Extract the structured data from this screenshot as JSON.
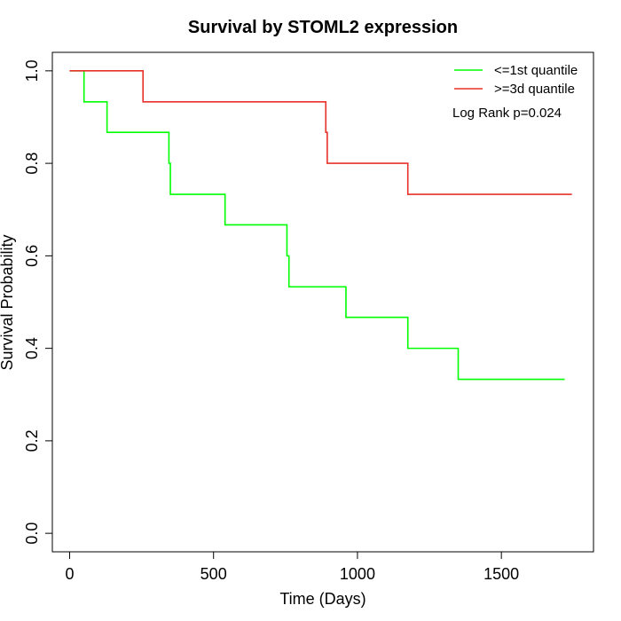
{
  "chart_data": {
    "type": "line",
    "step": "post",
    "title": "Survival by STOML2 expression",
    "xlabel": "Time (Days)",
    "ylabel": "Survival Probability",
    "xlim": [
      -60,
      1820
    ],
    "ylim": [
      -0.04,
      1.04
    ],
    "xticks": [
      0,
      500,
      1000,
      1500
    ],
    "yticks": [
      0.0,
      0.2,
      0.4,
      0.6,
      0.8,
      1.0
    ],
    "xtick_labels": [
      "0",
      "500",
      "1000",
      "1500"
    ],
    "ytick_labels": [
      "0.0",
      "0.2",
      "0.4",
      "0.6",
      "0.8",
      "1.0"
    ],
    "grid": false,
    "legend_position": "top-right",
    "annotation": "Log Rank p=0.024",
    "series": [
      {
        "name": "<=1st quantile",
        "color": "#00ff00",
        "x": [
          0,
          50,
          130,
          345,
          350,
          540,
          755,
          762,
          960,
          1175,
          1350,
          1720
        ],
        "y": [
          1.0,
          0.933,
          0.867,
          0.8,
          0.733,
          0.667,
          0.6,
          0.533,
          0.467,
          0.4,
          0.333,
          0.333
        ]
      },
      {
        "name": ">=3d quantile",
        "color": "#e8302a",
        "x": [
          0,
          255,
          890,
          895,
          1175,
          1745
        ],
        "y": [
          1.0,
          0.933,
          0.867,
          0.8,
          0.733,
          0.733
        ]
      }
    ]
  }
}
